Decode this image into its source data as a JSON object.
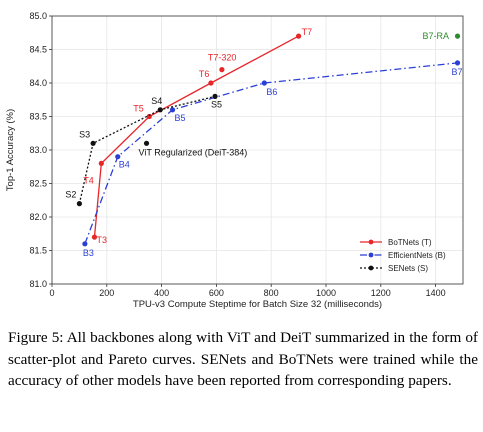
{
  "chart_data": {
    "type": "scatter",
    "title": "",
    "xlabel": "TPU-v3 Compute Steptime for Batch Size 32 (milliseconds)",
    "ylabel": "Top-1 Accuracy (%)",
    "xlim": [
      0,
      1500
    ],
    "ylim": [
      81.0,
      85.0
    ],
    "xticks": [
      0,
      200,
      400,
      600,
      800,
      1000,
      1200,
      1400
    ],
    "yticks": [
      81.0,
      81.5,
      82.0,
      82.5,
      83.0,
      83.5,
      84.0,
      84.5,
      85.0
    ],
    "grid": true,
    "legend_position": "lower-right",
    "series": [
      {
        "name": "BoTNets (T)",
        "color": "#e8262a",
        "line": "solid",
        "points": [
          {
            "label": "T3",
            "x": 155,
            "y": 81.7
          },
          {
            "label": "T4",
            "x": 180,
            "y": 82.8
          },
          {
            "label": "T5",
            "x": 355,
            "y": 83.5
          },
          {
            "label": "T6",
            "x": 580,
            "y": 84.0
          },
          {
            "label": "T7",
            "x": 900,
            "y": 84.7
          }
        ]
      },
      {
        "name": "EfficientNets (B)",
        "color": "#2b3fd6",
        "line": "dashdot",
        "points": [
          {
            "label": "B3",
            "x": 120,
            "y": 81.6
          },
          {
            "label": "B4",
            "x": 240,
            "y": 82.9
          },
          {
            "label": "B5",
            "x": 440,
            "y": 83.6
          },
          {
            "label": "B6",
            "x": 775,
            "y": 84.0
          },
          {
            "label": "B7",
            "x": 1480,
            "y": 84.3
          }
        ]
      },
      {
        "name": "SENets (S)",
        "color": "#111111",
        "line": "dotted",
        "points": [
          {
            "label": "S2",
            "x": 100,
            "y": 82.2
          },
          {
            "label": "S3",
            "x": 150,
            "y": 83.1
          },
          {
            "label": "S4",
            "x": 395,
            "y": 83.6
          },
          {
            "label": "S5",
            "x": 595,
            "y": 83.8
          }
        ]
      }
    ],
    "extra_points": [
      {
        "label": "T7-320",
        "x": 620,
        "y": 84.2,
        "color": "#e8262a"
      },
      {
        "label": "ViT Regularized (DeiT-384)",
        "x": 345,
        "y": 83.1,
        "color": "#111111"
      },
      {
        "label": "B7-RA",
        "x": 1480,
        "y": 84.7,
        "color": "#2e8b2e"
      }
    ]
  },
  "caption": "Figure 5: All backbones along with ViT and DeiT summarized in the form of scatter-plot and Pareto curves. SENets and BoTNets were trained while the accuracy of other models have been reported from corresponding papers."
}
